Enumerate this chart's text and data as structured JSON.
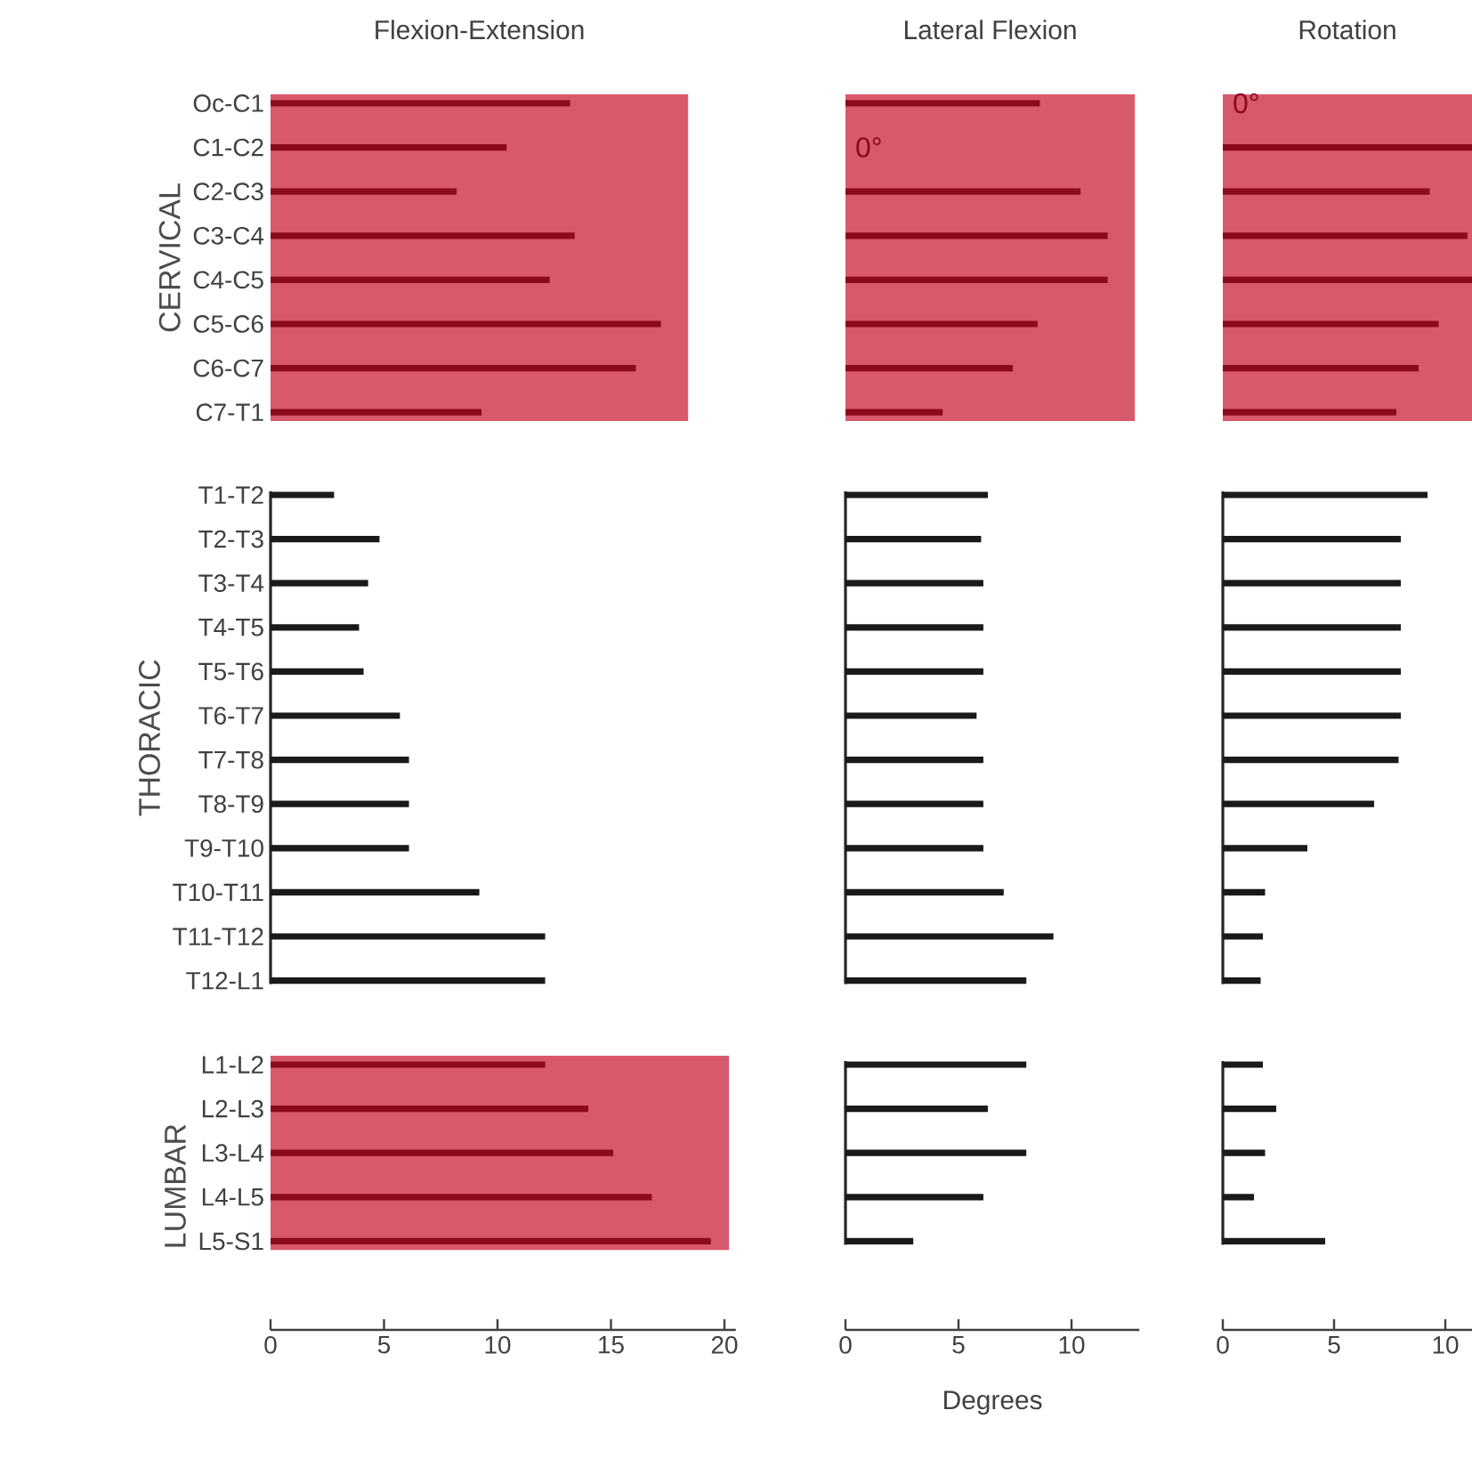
{
  "chart_data": [
    {
      "type": "bar",
      "orientation": "horizontal",
      "title": "Flexion-Extension",
      "ylabel": "CERVICAL",
      "categories": [
        "Oc-C1",
        "C1-C2",
        "C2-C3",
        "C3-C4",
        "C4-C5",
        "C5-C6",
        "C6-C7",
        "C7-T1"
      ],
      "values": [
        13.2,
        10.4,
        8.2,
        13.4,
        12.3,
        17.2,
        16.1,
        9.3
      ],
      "color": "#8b0a1e",
      "xlim": [
        0,
        18.4
      ],
      "xticks": [
        0,
        5,
        10,
        15
      ],
      "tick_labels": "y",
      "bands": [
        {
          "axis": "x",
          "from": 0,
          "to": 18.4,
          "color": "#d9596c"
        }
      ]
    },
    {
      "type": "bar",
      "orientation": "horizontal",
      "title": "Lateral Flexion",
      "categories": [
        "Oc-C1",
        "C1-C2",
        "C2-C3",
        "C3-C4",
        "C4-C5",
        "C5-C6",
        "C6-C7",
        "C7-T1"
      ],
      "values": [
        8.6,
        0,
        10.4,
        11.6,
        11.6,
        8.5,
        7.4,
        4.3
      ],
      "color": "#8b0a1e",
      "xlim": [
        0,
        12.8
      ],
      "xticks": [
        0,
        5,
        10
      ],
      "tick_labels": false,
      "bands": [
        {
          "axis": "x",
          "from": 0,
          "to": 12.8,
          "color": "#d9596c"
        }
      ],
      "annotations": [
        {
          "text": "0°",
          "x": 0,
          "y": "C1-C2"
        }
      ]
    },
    {
      "type": "bar",
      "orientation": "horizontal",
      "title": "Rotation",
      "categories": [
        "Oc-C1",
        "C1-C2",
        "C2-C3",
        "C3-C4",
        "C4-C5",
        "C5-C6",
        "C6-C7",
        "C7-T1"
      ],
      "values": [
        0,
        11.2,
        9.3,
        11.0,
        11.2,
        9.7,
        8.8,
        7.8
      ],
      "color": "#8b0a1e",
      "xlim": [
        0,
        11.2
      ],
      "xticks": [
        0,
        5,
        10
      ],
      "tick_labels": false,
      "bands": [
        {
          "axis": "x",
          "from": 0,
          "to": 11.2,
          "color": "#d9596c"
        }
      ],
      "annotations": [
        {
          "text": "0°",
          "x": 0,
          "y": "Oc-C1"
        }
      ]
    },
    {
      "type": "bar",
      "orientation": "horizontal",
      "ylabel": "THORACIC",
      "categories": [
        "T1-T2",
        "T2-T3",
        "T3-T4",
        "T4-T5",
        "T5-T6",
        "T6-T7",
        "T7-T8",
        "T8-T9",
        "T9-T10",
        "T10-T11",
        "T11-T12",
        "T12-L1"
      ],
      "values": [
        2.8,
        4.8,
        4.3,
        3.9,
        4.1,
        5.7,
        6.1,
        6.1,
        6.1,
        9.2,
        12.1,
        12.1
      ],
      "color": "#1a1a1a",
      "xlim": [
        0,
        20
      ],
      "xticks": [
        0,
        5,
        10,
        15,
        20
      ],
      "tick_labels": "y"
    },
    {
      "type": "bar",
      "orientation": "horizontal",
      "categories": [
        "T1-T2",
        "T2-T3",
        "T3-T4",
        "T4-T5",
        "T5-T6",
        "T6-T7",
        "T7-T8",
        "T8-T9",
        "T9-T10",
        "T10-T11",
        "T11-T12",
        "T12-L1"
      ],
      "values": [
        6.3,
        6.0,
        6.1,
        6.1,
        6.1,
        5.8,
        6.1,
        6.1,
        6.1,
        7.0,
        9.2,
        8.0
      ],
      "color": "#1a1a1a",
      "xlim": [
        0,
        10
      ],
      "xticks": [
        0,
        5,
        10
      ],
      "tick_labels": false
    },
    {
      "type": "bar",
      "orientation": "horizontal",
      "categories": [
        "T1-T2",
        "T2-T3",
        "T3-T4",
        "T4-T5",
        "T5-T6",
        "T6-T7",
        "T7-T8",
        "T8-T9",
        "T9-T10",
        "T10-T11",
        "T11-T12",
        "T12-L1"
      ],
      "values": [
        9.2,
        8.0,
        8.0,
        8.0,
        8.0,
        8.0,
        7.9,
        6.8,
        3.8,
        1.9,
        1.8,
        1.7
      ],
      "color": "#1a1a1a",
      "xlim": [
        0,
        10
      ],
      "xticks": [
        0,
        5,
        10
      ],
      "tick_labels": false
    },
    {
      "type": "bar",
      "orientation": "horizontal",
      "ylabel": "LUMBAR",
      "categories": [
        "L1-L2",
        "L2-L3",
        "L3-L4",
        "L4-L5",
        "L5-S1"
      ],
      "values": [
        12.1,
        14.0,
        15.1,
        16.8,
        19.4
      ],
      "color": "#8b0a1e",
      "xlim": [
        0,
        20.5
      ],
      "xticks": [
        0,
        5,
        10,
        15,
        20
      ],
      "bands": [
        {
          "axis": "x",
          "from": 0,
          "to": 20.2,
          "color": "#d9596c"
        }
      ]
    },
    {
      "type": "bar",
      "orientation": "horizontal",
      "xlabel": "Degrees",
      "categories": [
        "L1-L2",
        "L2-L3",
        "L3-L4",
        "L4-L5",
        "L5-S1"
      ],
      "values": [
        8.0,
        6.3,
        8.0,
        6.1,
        3.0
      ],
      "color": "#1a1a1a",
      "xlim": [
        0,
        13
      ],
      "xticks": [
        0,
        5,
        10
      ],
      "tick_labels": "x"
    },
    {
      "type": "bar",
      "orientation": "horizontal",
      "categories": [
        "L1-L2",
        "L2-L3",
        "L3-L4",
        "L4-L5",
        "L5-S1"
      ],
      "values": [
        1.8,
        2.4,
        1.9,
        1.4,
        4.6
      ],
      "color": "#1a1a1a",
      "xlim": [
        0,
        11.2
      ],
      "xticks": [
        0,
        5,
        10
      ],
      "tick_labels": "x"
    }
  ]
}
